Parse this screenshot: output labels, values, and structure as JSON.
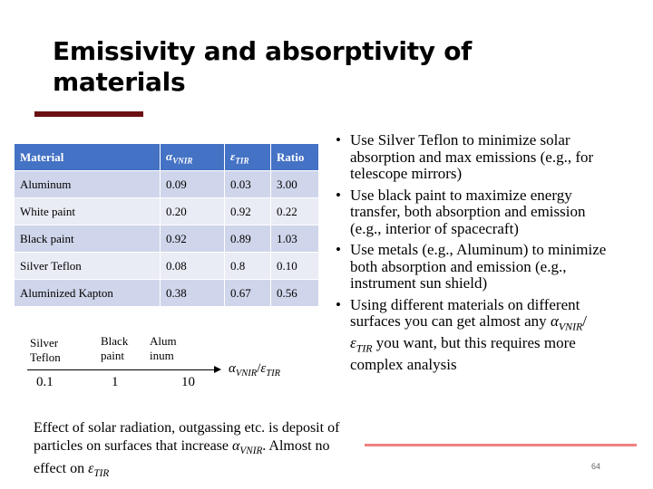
{
  "slide": {
    "title": "Emissivity and absorptivity of materials",
    "page_number": "64"
  },
  "table": {
    "headers": {
      "material": "Material",
      "alpha_symbol": "α",
      "alpha_sub": "VNIR",
      "eps_symbol": "ε",
      "eps_sub": "TIR",
      "ratio": "Ratio"
    },
    "rows": [
      {
        "material": "Aluminum",
        "alpha": "0.09",
        "eps": "0.03",
        "ratio": "3.00"
      },
      {
        "material": "White paint",
        "alpha": "0.20",
        "eps": "0.92",
        "ratio": "0.22"
      },
      {
        "material": "Black paint",
        "alpha": "0.92",
        "eps": "0.89",
        "ratio": "1.03"
      },
      {
        "material": "Silver Teflon",
        "alpha": "0.08",
        "eps": "0.8",
        "ratio": "0.10"
      },
      {
        "material": "Aluminized Kapton",
        "alpha": "0.38",
        "eps": "0.67",
        "ratio": "0.56"
      }
    ]
  },
  "bullets": {
    "b1": "Use Silver Teflon to minimize solar absorption and max emissions (e.g., for telescope mirrors)",
    "b2": "Use black paint to maximize energy transfer, both absorption and emission (e.g., interior of spacecraft)",
    "b3": "Use metals (e.g., Aluminum) to minimize both absorption and emission (e.g., instrument sun shield)",
    "b4_pre": "Using different materials on different surfaces you can get almost any ",
    "b4_post": " you want, but this requires more complex analysis"
  },
  "scale": {
    "label_silver_1": "Silver",
    "label_silver_2": "Teflon",
    "label_black_1": "Black",
    "label_black_2": "paint",
    "label_alum_1": "Alum",
    "label_alum_2": "inum",
    "tick_1": "0.1",
    "tick_2": "1",
    "tick_3": "10"
  },
  "effect": {
    "text_1": "Effect of solar radiation, outgassing etc. is deposit of particles on surfaces that increase ",
    "text_2": ". Almost no effect on "
  },
  "colors": {
    "table_header": "#4472c4",
    "row_dark": "#cfd5ea",
    "row_light": "#e9ebf5",
    "title_rule": "#6b0f12",
    "footer_rule": "#f08080"
  }
}
